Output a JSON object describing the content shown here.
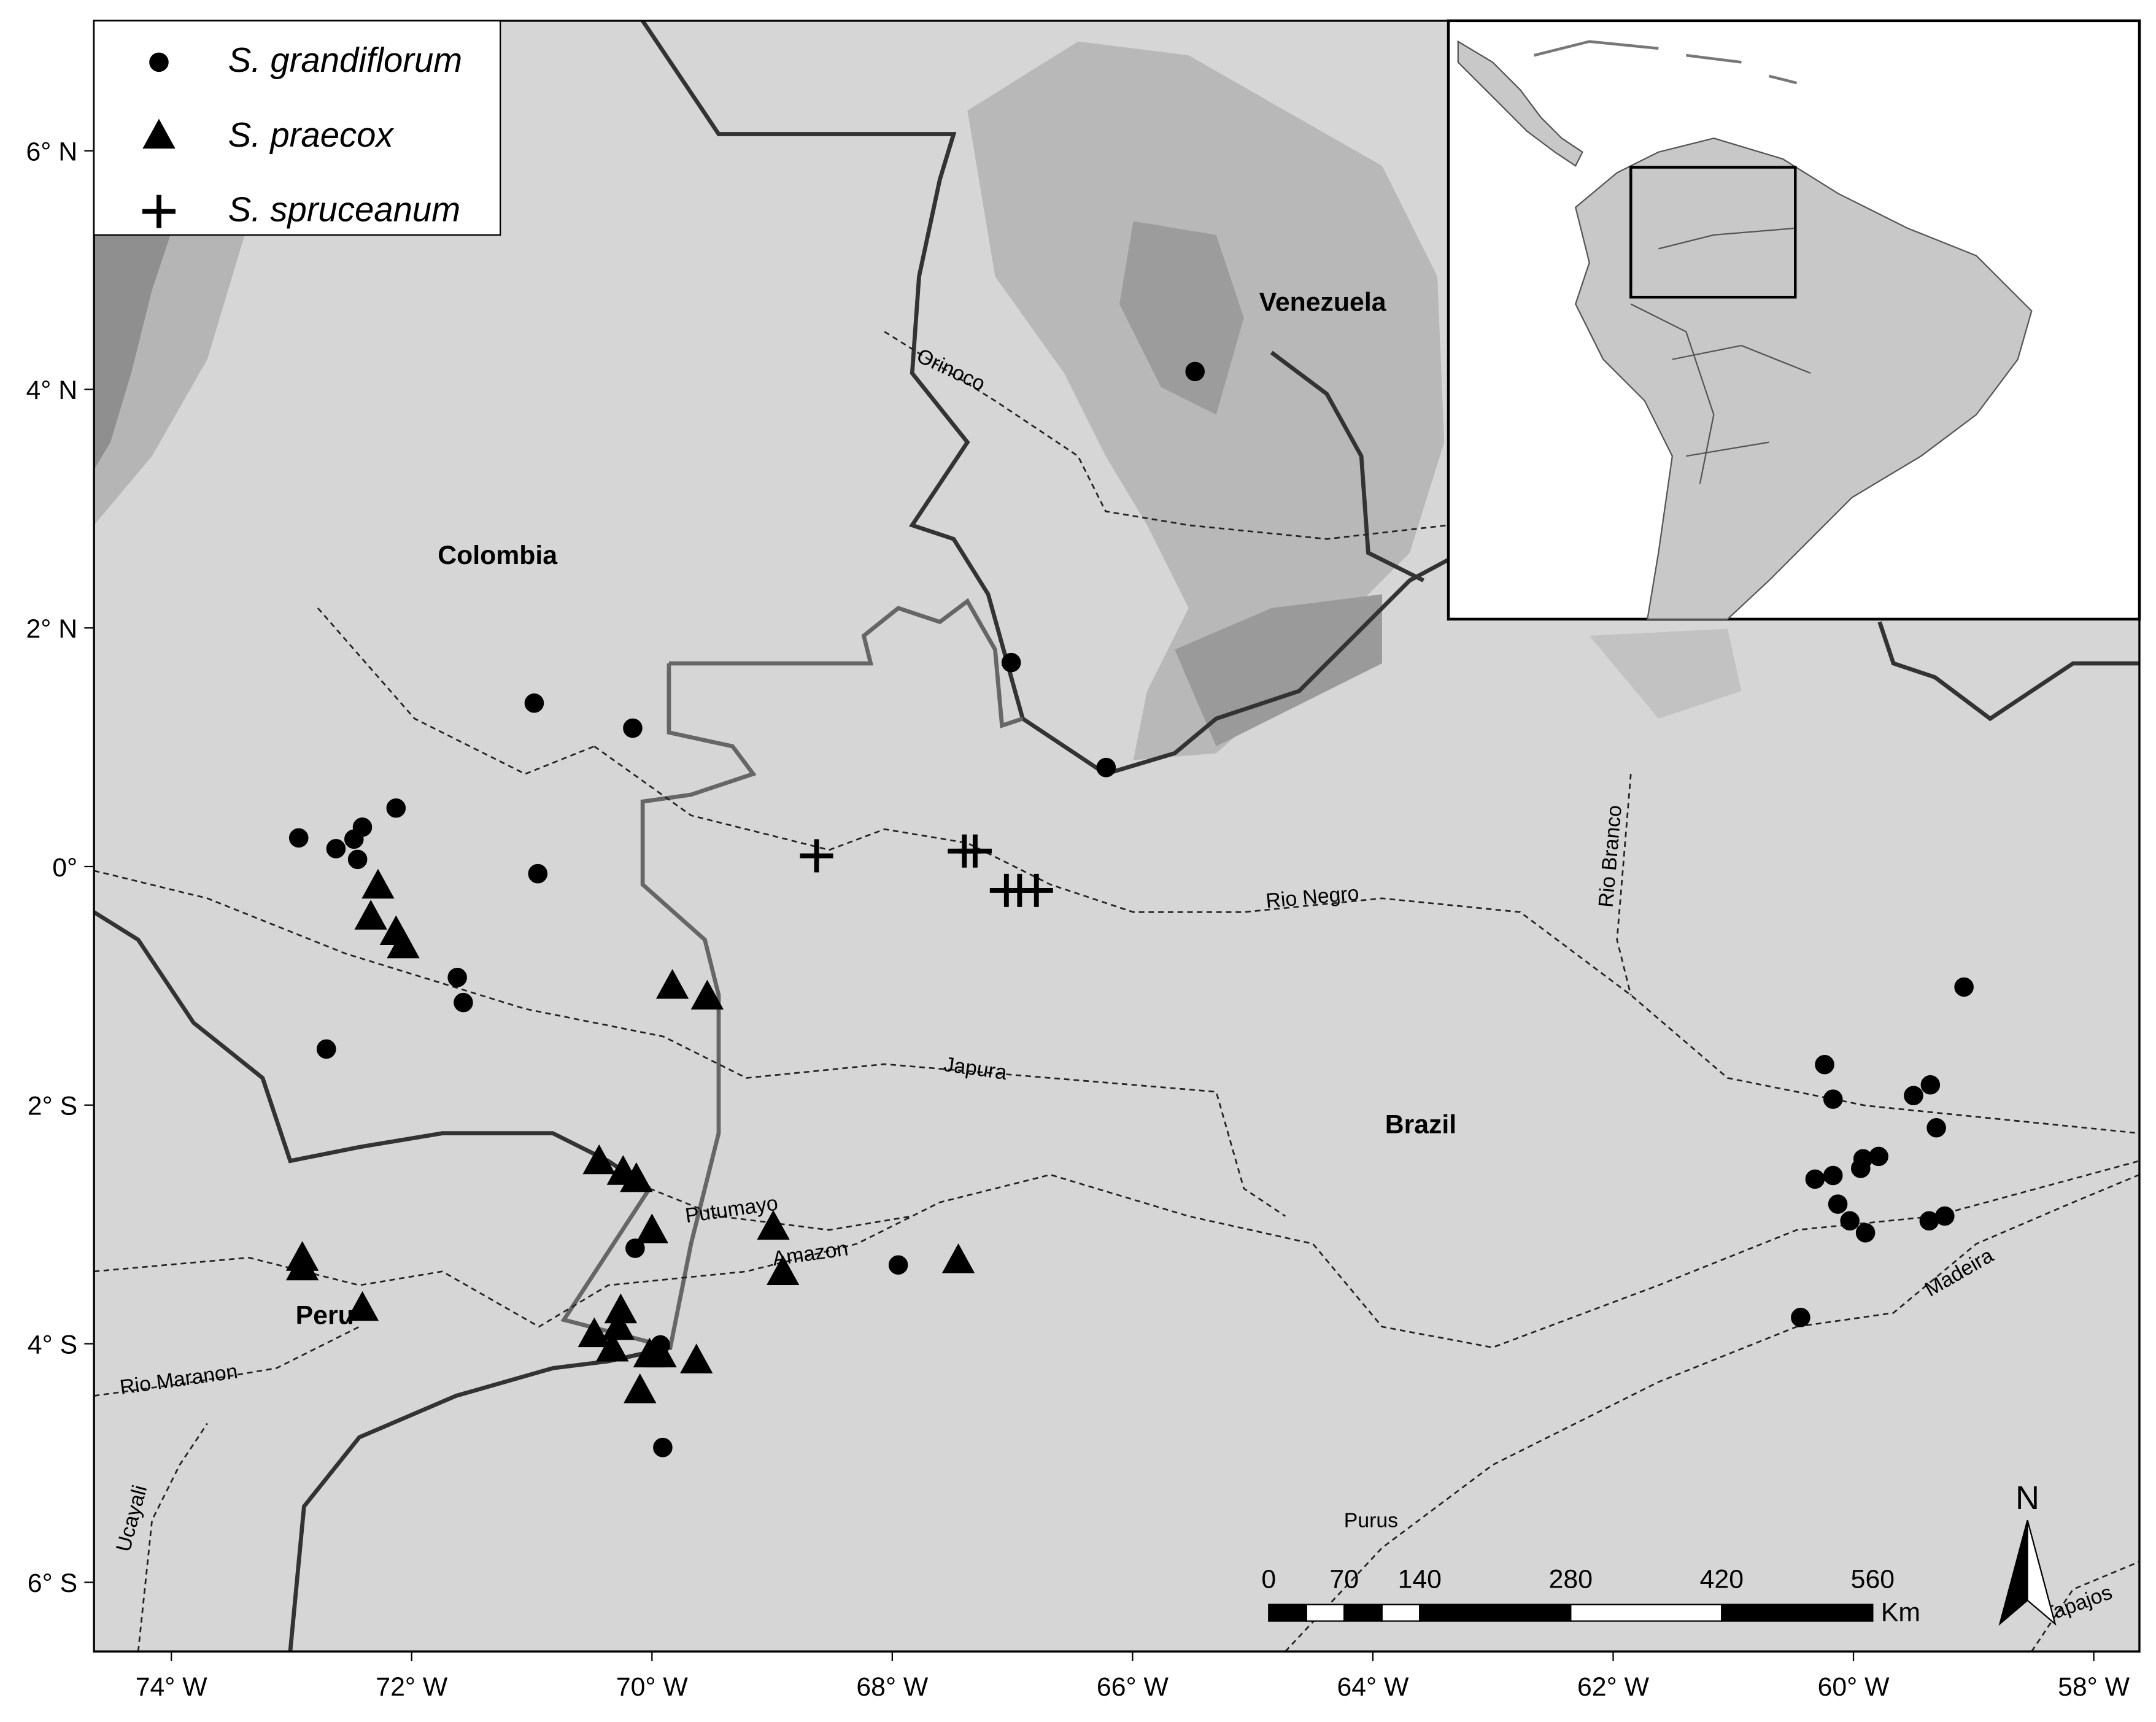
{
  "map": {
    "xlim": [
      -74.644,
      -57.62
    ],
    "ylim": [
      -6.58,
      7.09
    ],
    "xticks": [
      {
        "value": -74,
        "label": "74° W"
      },
      {
        "value": -72,
        "label": "72° W"
      },
      {
        "value": -70,
        "label": "70° W"
      },
      {
        "value": -68,
        "label": "68° W"
      },
      {
        "value": -66,
        "label": "66° W"
      },
      {
        "value": -64,
        "label": "64° W"
      },
      {
        "value": -62,
        "label": "62° W"
      },
      {
        "value": -60,
        "label": "60° W"
      },
      {
        "value": -58,
        "label": "58° W"
      }
    ],
    "yticks": [
      {
        "value": 6,
        "label": "6° N"
      },
      {
        "value": 4,
        "label": "4° N"
      },
      {
        "value": 2,
        "label": "2° N"
      },
      {
        "value": 0,
        "label": "0°"
      },
      {
        "value": -2,
        "label": "2° S"
      },
      {
        "value": -4,
        "label": "4° S"
      },
      {
        "value": -6,
        "label": "6° S"
      }
    ],
    "countries": [
      "Venezuela",
      "Colombia",
      "Brazil",
      "Peru"
    ],
    "rivers": [
      "Orinoco",
      "Rio Negro",
      "Rio Branco",
      "Japura",
      "Putumayo",
      "Amazon",
      "Madeira",
      "Rio Maranon",
      "Ucayali",
      "Purus",
      "Tapajos"
    ],
    "series": [
      {
        "name": "S. grandiflorum",
        "marker": "circle",
        "color": "#000000",
        "x": [
          -65.48,
          -67.01,
          -66.22,
          -70.98,
          -70.16,
          -72.13,
          -72.94,
          -72.63,
          -72.41,
          -72.48,
          -72.45,
          -70.95,
          -71.62,
          -71.57,
          -72.71,
          -59.08,
          -60.24,
          -60.17,
          -59.5,
          -59.36,
          -59.31,
          -59.79,
          -59.92,
          -59.94,
          -60.32,
          -60.17,
          -60.13,
          -60.03,
          -59.9,
          -59.37,
          -59.24,
          -60.44,
          -67.95,
          -70.14,
          -69.93,
          -69.91
        ],
        "y": [
          4.15,
          1.71,
          0.83,
          1.37,
          1.16,
          0.49,
          0.24,
          0.15,
          0.33,
          0.23,
          0.06,
          -0.06,
          -0.93,
          -1.14,
          -1.53,
          -1.01,
          -1.66,
          -1.95,
          -1.92,
          -1.83,
          -2.19,
          -2.43,
          -2.45,
          -2.53,
          -2.62,
          -2.59,
          -2.83,
          -2.97,
          -3.07,
          -2.97,
          -2.93,
          -3.78,
          -3.34,
          -3.2,
          -4.01,
          -4.87
        ]
      },
      {
        "name": "S. praecox",
        "marker": "triangle",
        "color": "#000000",
        "x": [
          -72.28,
          -72.34,
          -72.13,
          -72.07,
          -69.83,
          -69.54,
          -70.44,
          -70.24,
          -70.13,
          -70.0,
          -68.99,
          -68.91,
          -67.45,
          -72.91,
          -72.91,
          -72.41,
          -70.26,
          -70.28,
          -70.48,
          -70.33,
          -70.02,
          -69.93,
          -69.63,
          -70.1
        ],
        "y": [
          -0.17,
          -0.43,
          -0.56,
          -0.67,
          -1.01,
          -1.1,
          -2.48,
          -2.57,
          -2.63,
          -3.06,
          -3.03,
          -3.41,
          -3.31,
          -3.29,
          -3.37,
          -3.71,
          -3.73,
          -3.87,
          -3.93,
          -4.05,
          -4.1,
          -4.1,
          -4.15,
          -4.4
        ]
      },
      {
        "name": "S. spruceanum",
        "marker": "plus",
        "color": "#000000",
        "x": [
          -68.63,
          -67.4,
          -67.31,
          -67.05,
          -66.94,
          -66.8
        ],
        "y": [
          0.09,
          0.13,
          0.13,
          -0.2,
          -0.2,
          -0.2
        ]
      }
    ],
    "scale_bar": {
      "ticks": [
        0,
        70,
        140,
        280,
        420,
        560
      ],
      "unit": "Km"
    },
    "north": "N"
  }
}
